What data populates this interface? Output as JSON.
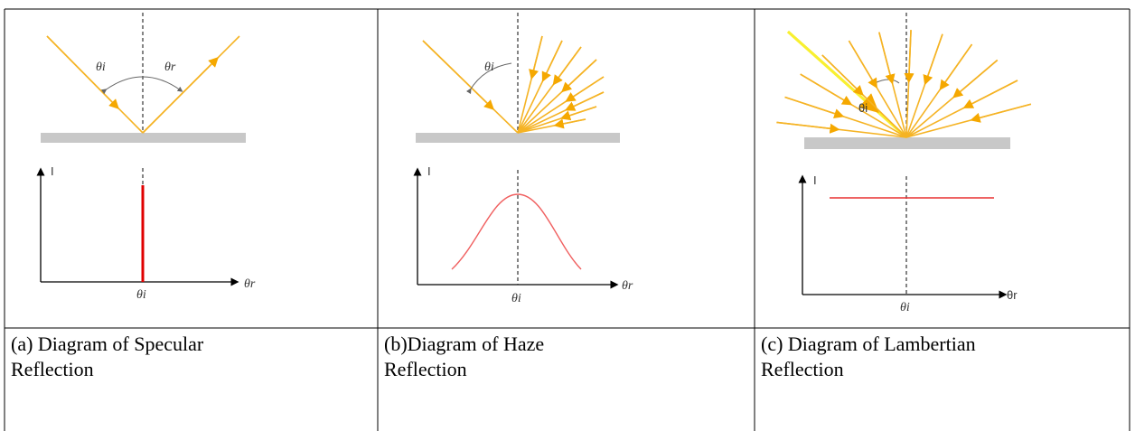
{
  "panels": [
    {
      "labels": {
        "incident": "θi",
        "reflected": "θr",
        "y_axis": "I",
        "x_axis": "θr",
        "x_tick": "θi"
      },
      "caption": [
        "(a) Diagram of Specular",
        "Reflection"
      ]
    },
    {
      "labels": {
        "incident": "θi",
        "y_axis": "I",
        "x_axis": "θr",
        "x_tick": "θi"
      },
      "caption": [
        "(b)Diagram of Haze",
        "Reflection"
      ]
    },
    {
      "labels": {
        "incident": "θi",
        "y_axis": "I",
        "x_axis": "θr",
        "x_tick": "θi"
      },
      "caption": [
        "(c) Diagram of Lambertian",
        "Reflection"
      ]
    }
  ]
}
